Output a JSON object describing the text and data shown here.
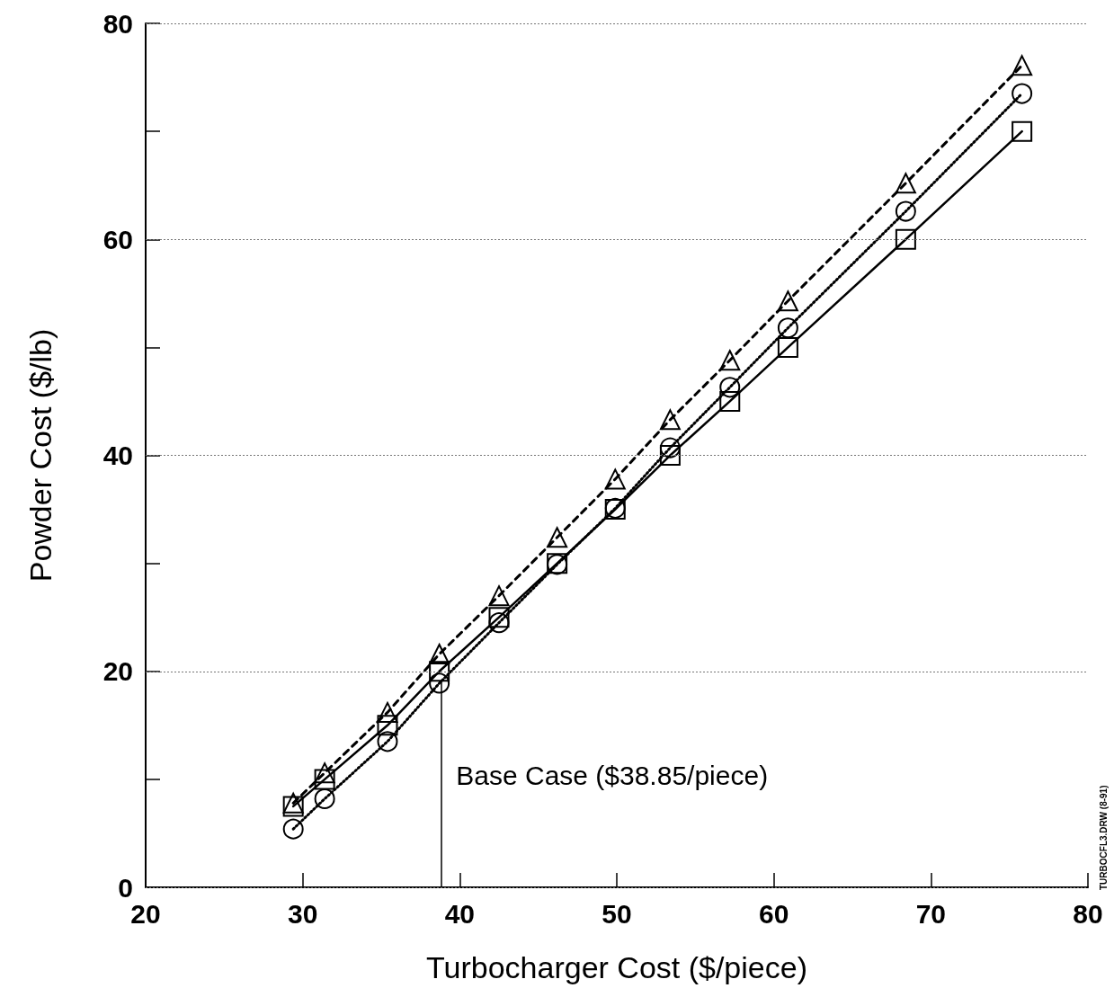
{
  "chart_data": {
    "type": "line",
    "xlabel": "Turbocharger Cost ($/piece)",
    "ylabel": "Powder Cost ($/lb)",
    "series": [
      {
        "color": "#000000",
        "marker": "triangle",
        "line_style": "dashed",
        "x": [
          29.4,
          31.4,
          35.4,
          38.7,
          42.5,
          46.2,
          49.9,
          53.4,
          57.2,
          60.9,
          68.4,
          75.8
        ],
        "values": [
          7.8,
          10.6,
          16.2,
          21.6,
          27.0,
          32.4,
          37.8,
          43.3,
          48.8,
          54.3,
          65.2,
          76.1
        ]
      },
      {
        "color": "#000000",
        "marker": "circle",
        "line_style": "dotted",
        "x": [
          29.4,
          31.4,
          35.4,
          38.7,
          42.5,
          46.2,
          49.9,
          53.4,
          57.2,
          60.9,
          68.4,
          75.8
        ],
        "values": [
          5.4,
          8.2,
          13.5,
          18.9,
          24.5,
          29.9,
          35.1,
          40.7,
          46.3,
          51.8,
          62.6,
          73.5
        ]
      },
      {
        "color": "#000000",
        "marker": "square",
        "line_style": "solid",
        "x": [
          29.4,
          31.4,
          35.4,
          38.7,
          42.5,
          46.2,
          49.9,
          53.4,
          57.2,
          60.9,
          68.4,
          75.8
        ],
        "values": [
          7.5,
          10,
          15,
          20,
          25,
          30,
          35,
          40,
          45,
          50,
          60,
          70
        ]
      }
    ],
    "xlim": [
      20,
      80
    ],
    "xticks": [
      20,
      30,
      40,
      50,
      60,
      70,
      80
    ],
    "ylim": [
      0,
      80
    ],
    "yticks": [
      0,
      {
        "value": 10,
        "label": null
      },
      20,
      {
        "value": 30,
        "label": null
      },
      40,
      {
        "value": 50,
        "label": null
      },
      60,
      {
        "value": 70,
        "label": null
      },
      80
    ],
    "grid": "y",
    "ref_lines": [
      {
        "axis": "x",
        "value": 38.85,
        "label": "Base Case ($38.85/piece)"
      }
    ],
    "annotations": [
      "TURBOCFL3.DRW (8-91)"
    ]
  }
}
